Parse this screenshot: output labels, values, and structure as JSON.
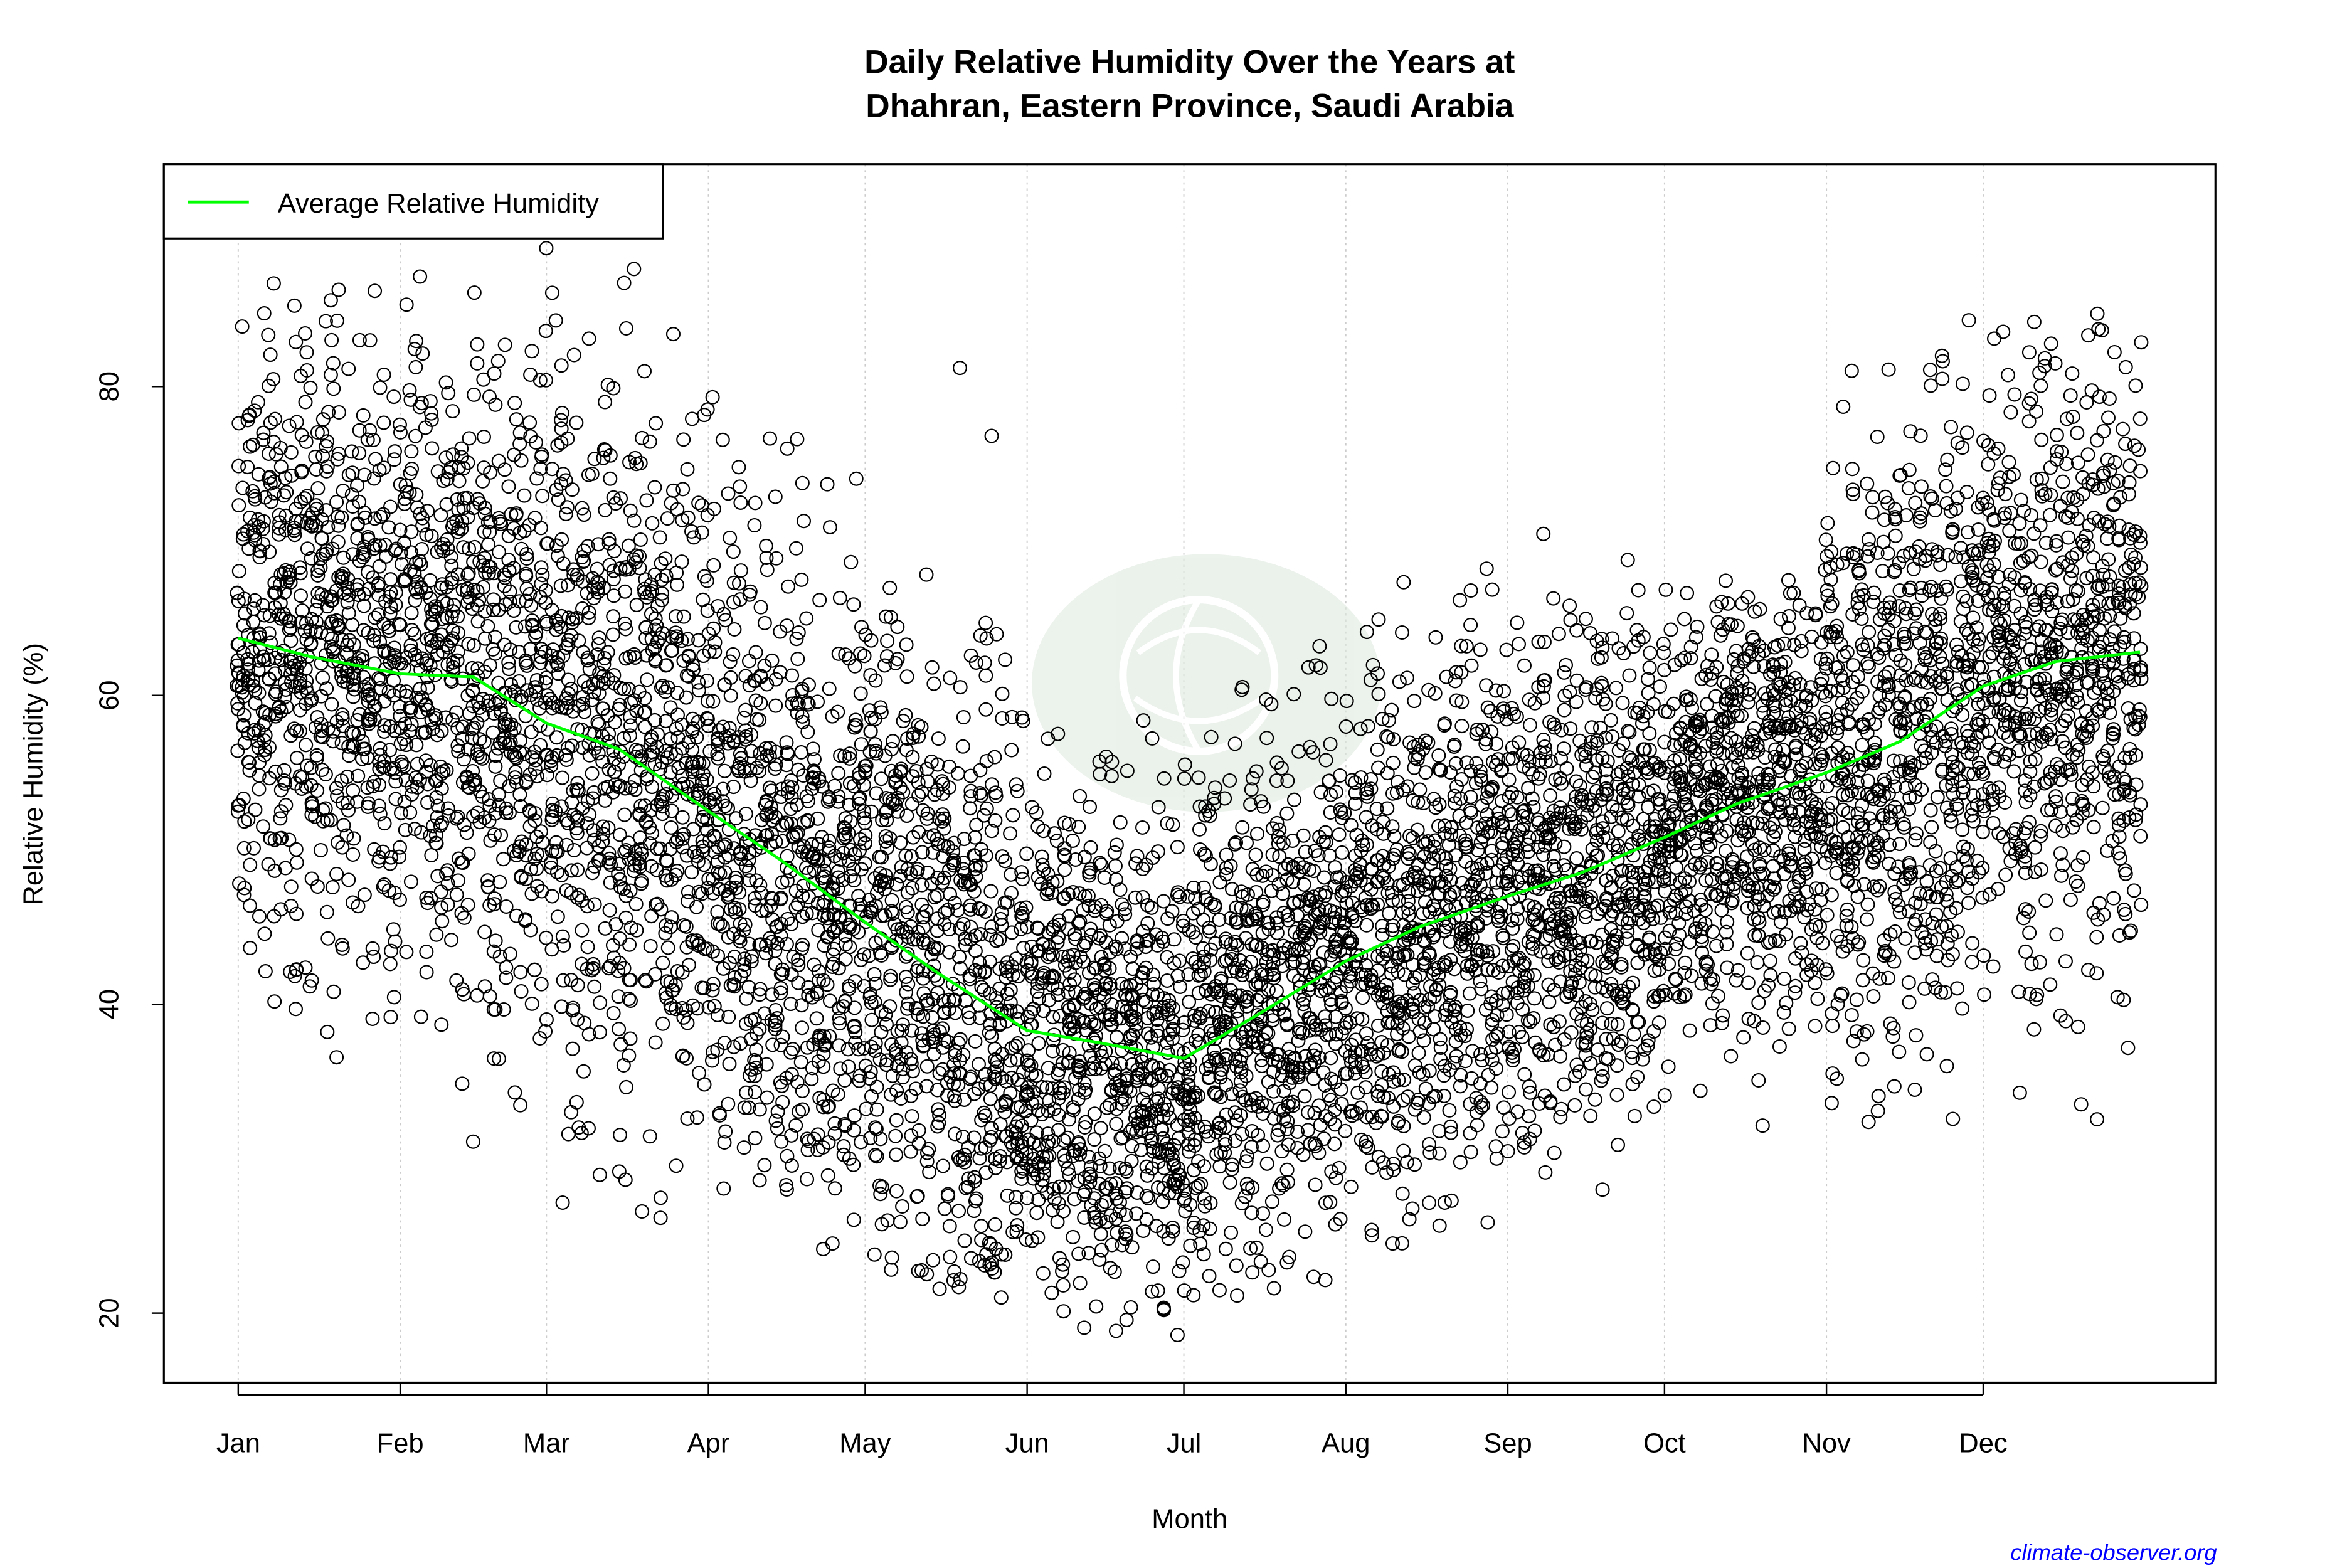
{
  "chart_data": {
    "type": "scatter",
    "title_lines": [
      "Daily Relative Humidity Over the Years at",
      "Dhahran, Eastern Province, Saudi Arabia"
    ],
    "xlabel": "Month",
    "ylabel": "Relative Humidity  (%)",
    "x_tick_labels": [
      "Jan",
      "Feb",
      "Mar",
      "Apr",
      "May",
      "Jun",
      "Jul",
      "Aug",
      "Sep",
      "Oct",
      "Nov",
      "Dec"
    ],
    "x_tick_days": [
      1,
      32,
      60,
      91,
      121,
      152,
      182,
      213,
      244,
      274,
      305,
      335
    ],
    "y_ticks": [
      20,
      40,
      60,
      80
    ],
    "xlim_days": [
      1,
      365
    ],
    "ylim": [
      15.5,
      94.4
    ],
    "grid": "vertical dotted at month starts",
    "legend": {
      "label": "Average Relative Humidity",
      "placement": "top-left"
    },
    "colors": {
      "average_line": "#00ff00",
      "points": "#000000",
      "credit": "#0000ff"
    },
    "average_line": {
      "day": [
        1,
        15,
        32,
        46,
        60,
        74,
        91,
        105,
        121,
        135,
        152,
        166,
        182,
        196,
        213,
        227,
        244,
        258,
        274,
        288,
        305,
        319,
        335,
        349,
        365
      ],
      "value": [
        63.7,
        62.5,
        61.4,
        61.2,
        58.2,
        56.5,
        52.5,
        49.3,
        45.3,
        42.0,
        38.3,
        37.5,
        36.5,
        39.3,
        42.8,
        45.0,
        47.0,
        48.5,
        50.8,
        53.0,
        55.0,
        57.0,
        60.6,
        62.2,
        62.8
      ]
    },
    "scatter_monthly_range": [
      {
        "month": "Jan",
        "min": 34.5,
        "max": 89.5
      },
      {
        "month": "Feb",
        "min": 30.0,
        "max": 88.5
      },
      {
        "month": "Mar",
        "min": 24.5,
        "max": 89.0
      },
      {
        "month": "Apr",
        "min": 24.0,
        "max": 83.0
      },
      {
        "month": "May",
        "min": 21.0,
        "max": 82.5
      },
      {
        "month": "Jun",
        "min": 18.2,
        "max": 61.5
      },
      {
        "month": "Jul",
        "min": 21.0,
        "max": 64.0
      },
      {
        "month": "Aug",
        "min": 23.0,
        "max": 70.0
      },
      {
        "month": "Sep",
        "min": 26.8,
        "max": 70.5
      },
      {
        "month": "Oct",
        "min": 27.8,
        "max": 67.5
      },
      {
        "month": "Nov",
        "min": 31.0,
        "max": 85.0
      },
      {
        "month": "Dec",
        "min": 30.5,
        "max": 85.0
      }
    ]
  },
  "credit": "climate-observer.org"
}
